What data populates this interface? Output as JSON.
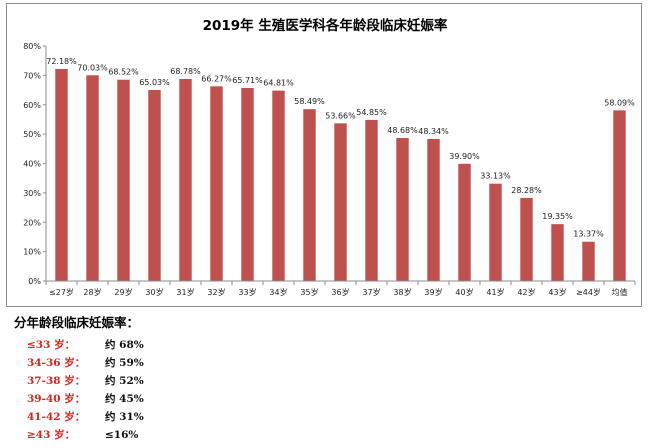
{
  "chart_data": {
    "type": "bar",
    "title": "2019年 生殖医学科各年龄段临床妊娠率",
    "xlabel": "",
    "ylabel": "",
    "ylim": [
      0,
      80
    ],
    "yticks": [
      "0%",
      "10%",
      "20%",
      "30%",
      "40%",
      "50%",
      "60%",
      "70%",
      "80%"
    ],
    "grid": false,
    "legend": "none",
    "bar_color": "#c0504d",
    "categories": [
      "≤27岁",
      "28岁",
      "29岁",
      "30岁",
      "31岁",
      "32岁",
      "33岁",
      "34岁",
      "35岁",
      "36岁",
      "37岁",
      "38岁",
      "39岁",
      "40岁",
      "41岁",
      "42岁",
      "43岁",
      "≥44岁",
      "均值"
    ],
    "values": [
      72.18,
      70.03,
      68.52,
      65.03,
      68.78,
      66.27,
      65.71,
      64.81,
      58.49,
      53.66,
      54.85,
      48.68,
      48.34,
      39.9,
      33.13,
      28.28,
      19.35,
      13.37,
      58.09
    ],
    "data_labels": [
      "72.18%",
      "70.03%",
      "68.52%",
      "65.03%",
      "68.78%",
      "66.27%",
      "65.71%",
      "64.81%",
      "58.49%",
      "53.66%",
      "54.85%",
      "48.68%",
      "48.34%",
      "39.90%",
      "33.13%",
      "28.28%",
      "19.35%",
      "13.37%",
      "58.09%"
    ]
  },
  "summary": {
    "title": "分年龄段临床妊娠率：",
    "label_color": "#e0201c",
    "rows": [
      {
        "label": "≤33 岁：",
        "value": "约 68%"
      },
      {
        "label": "34-36 岁：",
        "value": "约 59%"
      },
      {
        "label": "37-38 岁：",
        "value": "约 52%"
      },
      {
        "label": "39-40 岁：",
        "value": "约 45%"
      },
      {
        "label": "41-42 岁：",
        "value": "约 31%"
      },
      {
        "label": "≥43 岁：",
        "value": "≤16%"
      }
    ]
  }
}
